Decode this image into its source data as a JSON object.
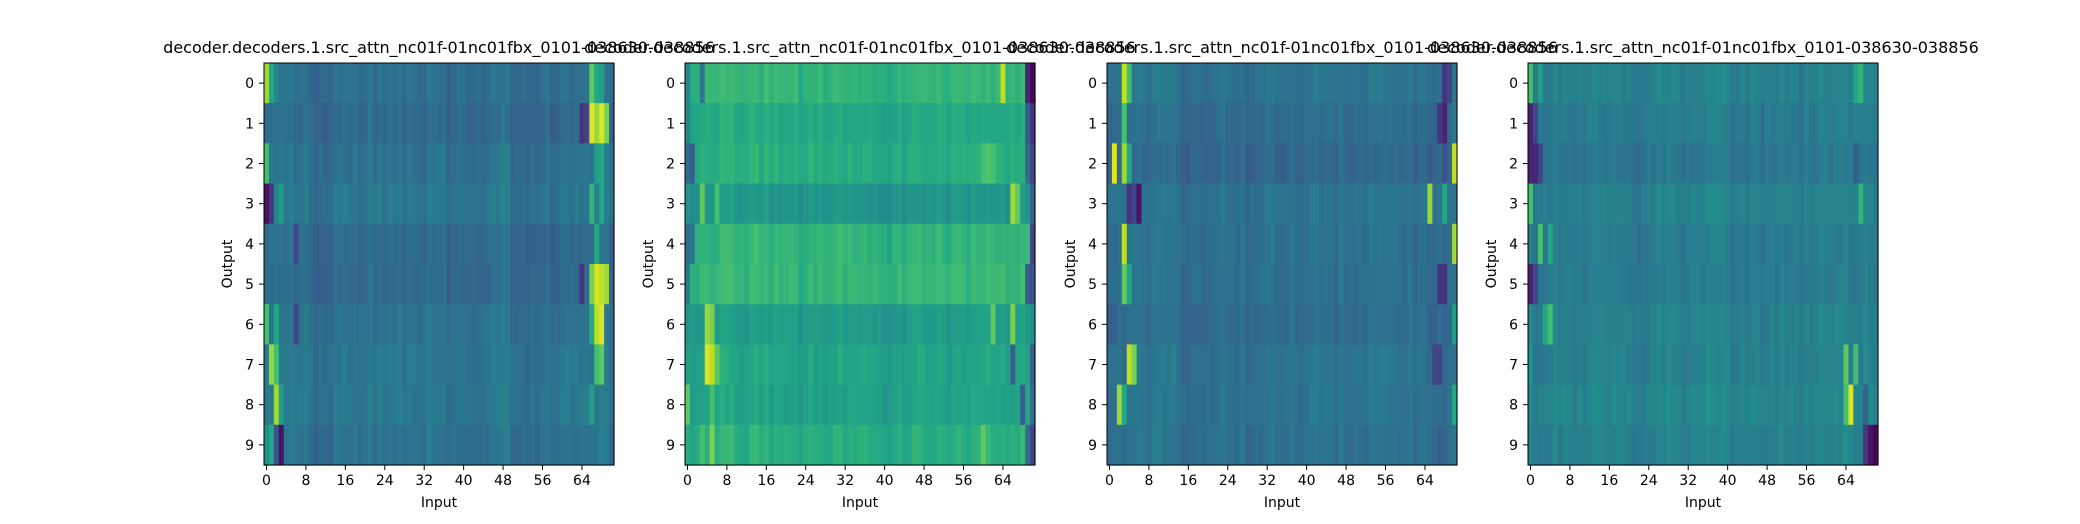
{
  "figure": {
    "background": "#ffffff",
    "colormap": "viridis"
  },
  "chart_data": [
    {
      "type": "heatmap",
      "title": "decoder.decoders.1.src_attn_nc01f-01nc01fbx_0101-038630-038856",
      "xlabel": "Input",
      "ylabel": "Output",
      "x_ticks": [
        "0",
        "8",
        "16",
        "24",
        "32",
        "40",
        "48",
        "56",
        "64"
      ],
      "y_ticks": [
        "0",
        "1",
        "2",
        "3",
        "4",
        "5",
        "6",
        "7",
        "8",
        "9"
      ],
      "rows": 10,
      "cols": 71,
      "base": 0.35,
      "row_offsets": [
        0.02,
        0.0,
        0.03,
        0.05,
        0.0,
        0.0,
        0.03,
        0.05,
        0.05,
        0.03
      ],
      "features": [
        {
          "row": 0,
          "col": 0,
          "value": 0.85
        },
        {
          "row": 0,
          "col": 1,
          "value": 0.6
        },
        {
          "row": 0,
          "col": 2,
          "value": 0.45
        },
        {
          "row": 0,
          "col": 66,
          "value": 0.75
        },
        {
          "row": 0,
          "col": 67,
          "value": 0.6
        },
        {
          "row": 0,
          "col": 68,
          "value": 0.55
        },
        {
          "row": 1,
          "col": 66,
          "value": 0.95
        },
        {
          "row": 1,
          "col": 67,
          "value": 0.85
        },
        {
          "row": 1,
          "col": 68,
          "value": 0.95
        },
        {
          "row": 1,
          "col": 69,
          "value": 0.8
        },
        {
          "row": 1,
          "col": 64,
          "value": 0.15
        },
        {
          "row": 1,
          "col": 65,
          "value": 0.2
        },
        {
          "row": 2,
          "col": 0,
          "value": 0.7
        },
        {
          "row": 2,
          "col": 67,
          "value": 0.55
        },
        {
          "row": 2,
          "col": 68,
          "value": 0.6
        },
        {
          "row": 3,
          "col": 0,
          "value": 0.05
        },
        {
          "row": 3,
          "col": 1,
          "value": 0.15
        },
        {
          "row": 3,
          "col": 3,
          "value": 0.55
        },
        {
          "row": 3,
          "col": 66,
          "value": 0.65
        },
        {
          "row": 3,
          "col": 68,
          "value": 0.6
        },
        {
          "row": 4,
          "col": 6,
          "value": 0.2
        },
        {
          "row": 4,
          "col": 67,
          "value": 0.6
        },
        {
          "row": 5,
          "col": 66,
          "value": 0.8
        },
        {
          "row": 5,
          "col": 67,
          "value": 0.95
        },
        {
          "row": 5,
          "col": 68,
          "value": 0.9
        },
        {
          "row": 5,
          "col": 69,
          "value": 0.85
        },
        {
          "row": 5,
          "col": 64,
          "value": 0.15
        },
        {
          "row": 6,
          "col": 0,
          "value": 0.7
        },
        {
          "row": 6,
          "col": 2,
          "value": 0.6
        },
        {
          "row": 6,
          "col": 6,
          "value": 0.2
        },
        {
          "row": 6,
          "col": 67,
          "value": 0.9
        },
        {
          "row": 6,
          "col": 68,
          "value": 0.95
        },
        {
          "row": 6,
          "col": 66,
          "value": 0.6
        },
        {
          "row": 7,
          "col": 1,
          "value": 0.85
        },
        {
          "row": 7,
          "col": 2,
          "value": 0.7
        },
        {
          "row": 7,
          "col": 67,
          "value": 0.7
        },
        {
          "row": 7,
          "col": 68,
          "value": 0.75
        },
        {
          "row": 8,
          "col": 2,
          "value": 0.85
        },
        {
          "row": 8,
          "col": 3,
          "value": 0.55
        },
        {
          "row": 8,
          "col": 66,
          "value": 0.55
        },
        {
          "row": 9,
          "col": 3,
          "value": 0.05
        },
        {
          "row": 9,
          "col": 2,
          "value": 0.25
        },
        {
          "row": 9,
          "col": 1,
          "value": 0.6
        },
        {
          "row": 9,
          "col": 0,
          "value": 0.5
        }
      ]
    },
    {
      "type": "heatmap",
      "title": "decoder.decoders.1.src_attn_nc01f-01nc01fbx_0101-038630-038856",
      "xlabel": "Input",
      "ylabel": "Output",
      "x_ticks": [
        "0",
        "8",
        "16",
        "24",
        "32",
        "40",
        "48",
        "56",
        "64"
      ],
      "y_ticks": [
        "0",
        "1",
        "2",
        "3",
        "4",
        "5",
        "6",
        "7",
        "8",
        "9"
      ],
      "rows": 10,
      "cols": 71,
      "base": 0.6,
      "row_offsets": [
        0.05,
        0.0,
        0.02,
        -0.08,
        0.05,
        0.06,
        -0.05,
        -0.02,
        -0.03,
        0.02
      ],
      "features": [
        {
          "row": 0,
          "col": 70,
          "value": 0.02
        },
        {
          "row": 0,
          "col": 69,
          "value": 0.1
        },
        {
          "row": 0,
          "col": 64,
          "value": 0.9
        },
        {
          "row": 0,
          "col": 0,
          "value": 0.45
        },
        {
          "row": 0,
          "col": 3,
          "value": 0.4
        },
        {
          "row": 1,
          "col": 70,
          "value": 0.15
        },
        {
          "row": 1,
          "col": 69,
          "value": 0.3
        },
        {
          "row": 1,
          "col": 0,
          "value": 0.45
        },
        {
          "row": 2,
          "col": 70,
          "value": 0.2
        },
        {
          "row": 2,
          "col": 69,
          "value": 0.35
        },
        {
          "row": 2,
          "col": 0,
          "value": 0.35
        },
        {
          "row": 2,
          "col": 1,
          "value": 0.3
        },
        {
          "row": 2,
          "col": 60,
          "value": 0.7
        },
        {
          "row": 2,
          "col": 61,
          "value": 0.72
        },
        {
          "row": 2,
          "col": 62,
          "value": 0.7
        },
        {
          "row": 3,
          "col": 66,
          "value": 0.85
        },
        {
          "row": 3,
          "col": 67,
          "value": 0.75
        },
        {
          "row": 3,
          "col": 3,
          "value": 0.75
        },
        {
          "row": 3,
          "col": 6,
          "value": 0.7
        },
        {
          "row": 3,
          "col": 70,
          "value": 0.3
        },
        {
          "row": 4,
          "col": 70,
          "value": 0.2
        },
        {
          "row": 4,
          "col": 0,
          "value": 0.35
        },
        {
          "row": 4,
          "col": 1,
          "value": 0.4
        },
        {
          "row": 5,
          "col": 70,
          "value": 0.25
        },
        {
          "row": 5,
          "col": 69,
          "value": 0.3
        },
        {
          "row": 5,
          "col": 0,
          "value": 0.4
        },
        {
          "row": 6,
          "col": 4,
          "value": 0.85
        },
        {
          "row": 6,
          "col": 5,
          "value": 0.8
        },
        {
          "row": 6,
          "col": 62,
          "value": 0.75
        },
        {
          "row": 6,
          "col": 66,
          "value": 0.8
        },
        {
          "row": 6,
          "col": 70,
          "value": 0.5
        },
        {
          "row": 7,
          "col": 4,
          "value": 0.95
        },
        {
          "row": 7,
          "col": 5,
          "value": 0.9
        },
        {
          "row": 7,
          "col": 6,
          "value": 0.75
        },
        {
          "row": 7,
          "col": 66,
          "value": 0.3
        },
        {
          "row": 7,
          "col": 70,
          "value": 0.3
        },
        {
          "row": 8,
          "col": 0,
          "value": 0.75
        },
        {
          "row": 8,
          "col": 5,
          "value": 0.7
        },
        {
          "row": 8,
          "col": 68,
          "value": 0.3
        },
        {
          "row": 8,
          "col": 70,
          "value": 0.35
        },
        {
          "row": 9,
          "col": 5,
          "value": 0.8
        },
        {
          "row": 9,
          "col": 3,
          "value": 0.7
        },
        {
          "row": 9,
          "col": 70,
          "value": 0.2
        },
        {
          "row": 9,
          "col": 69,
          "value": 0.35
        },
        {
          "row": 9,
          "col": 60,
          "value": 0.75
        }
      ]
    },
    {
      "type": "heatmap",
      "title": "decoder.decoders.1.src_attn_nc01f-01nc01fbx_0101-038630-038856",
      "xlabel": "Input",
      "ylabel": "Output",
      "x_ticks": [
        "0",
        "8",
        "16",
        "24",
        "32",
        "40",
        "48",
        "56",
        "64"
      ],
      "y_ticks": [
        "0",
        "1",
        "2",
        "3",
        "4",
        "5",
        "6",
        "7",
        "8",
        "9"
      ],
      "rows": 10,
      "cols": 71,
      "base": 0.35,
      "row_offsets": [
        0.03,
        0.0,
        -0.02,
        0.03,
        0.02,
        0.02,
        0.0,
        0.03,
        0.03,
        0.02
      ],
      "features": [
        {
          "row": 0,
          "col": 3,
          "value": 0.9
        },
        {
          "row": 0,
          "col": 4,
          "value": 0.7
        },
        {
          "row": 0,
          "col": 68,
          "value": 0.15
        },
        {
          "row": 0,
          "col": 69,
          "value": 0.2
        },
        {
          "row": 1,
          "col": 3,
          "value": 0.7
        },
        {
          "row": 1,
          "col": 67,
          "value": 0.15
        },
        {
          "row": 1,
          "col": 68,
          "value": 0.1
        },
        {
          "row": 1,
          "col": 70,
          "value": 0.4
        },
        {
          "row": 2,
          "col": 1,
          "value": 0.95
        },
        {
          "row": 2,
          "col": 3,
          "value": 0.85
        },
        {
          "row": 2,
          "col": 4,
          "value": 0.6
        },
        {
          "row": 2,
          "col": 68,
          "value": 0.25
        },
        {
          "row": 2,
          "col": 70,
          "value": 0.9
        },
        {
          "row": 3,
          "col": 4,
          "value": 0.15
        },
        {
          "row": 3,
          "col": 5,
          "value": 0.2
        },
        {
          "row": 3,
          "col": 6,
          "value": 0.05
        },
        {
          "row": 3,
          "col": 65,
          "value": 0.85
        },
        {
          "row": 3,
          "col": 68,
          "value": 0.6
        },
        {
          "row": 4,
          "col": 3,
          "value": 0.9
        },
        {
          "row": 4,
          "col": 70,
          "value": 0.85
        },
        {
          "row": 5,
          "col": 3,
          "value": 0.75
        },
        {
          "row": 5,
          "col": 4,
          "value": 0.6
        },
        {
          "row": 5,
          "col": 67,
          "value": 0.15
        },
        {
          "row": 5,
          "col": 68,
          "value": 0.15
        },
        {
          "row": 6,
          "col": 0,
          "value": 0.3
        },
        {
          "row": 6,
          "col": 70,
          "value": 0.55
        },
        {
          "row": 7,
          "col": 4,
          "value": 0.9
        },
        {
          "row": 7,
          "col": 5,
          "value": 0.8
        },
        {
          "row": 7,
          "col": 66,
          "value": 0.2
        },
        {
          "row": 7,
          "col": 67,
          "value": 0.2
        },
        {
          "row": 8,
          "col": 2,
          "value": 0.85
        },
        {
          "row": 8,
          "col": 3,
          "value": 0.6
        },
        {
          "row": 8,
          "col": 70,
          "value": 0.6
        },
        {
          "row": 9,
          "col": 67,
          "value": 0.3
        },
        {
          "row": 9,
          "col": 70,
          "value": 0.4
        }
      ]
    },
    {
      "type": "heatmap",
      "title": "decoder.decoders.1.src_attn_nc01f-01nc01fbx_0101-038630-038856",
      "xlabel": "Input",
      "ylabel": "Output",
      "x_ticks": [
        "0",
        "8",
        "16",
        "24",
        "32",
        "40",
        "48",
        "56",
        "64"
      ],
      "y_ticks": [
        "0",
        "1",
        "2",
        "3",
        "4",
        "5",
        "6",
        "7",
        "8",
        "9"
      ],
      "rows": 10,
      "cols": 71,
      "base": 0.42,
      "row_offsets": [
        0.02,
        0.0,
        -0.02,
        0.02,
        0.0,
        0.0,
        0.02,
        0.02,
        0.04,
        0.02
      ],
      "features": [
        {
          "row": 0,
          "col": 0,
          "value": 0.7
        },
        {
          "row": 0,
          "col": 2,
          "value": 0.55
        },
        {
          "row": 0,
          "col": 66,
          "value": 0.6
        },
        {
          "row": 0,
          "col": 67,
          "value": 0.65
        },
        {
          "row": 1,
          "col": 0,
          "value": 0.1
        },
        {
          "row": 1,
          "col": 1,
          "value": 0.2
        },
        {
          "row": 2,
          "col": 0,
          "value": 0.1
        },
        {
          "row": 2,
          "col": 1,
          "value": 0.1
        },
        {
          "row": 2,
          "col": 2,
          "value": 0.2
        },
        {
          "row": 2,
          "col": 66,
          "value": 0.3
        },
        {
          "row": 3,
          "col": 0,
          "value": 0.7
        },
        {
          "row": 3,
          "col": 67,
          "value": 0.65
        },
        {
          "row": 4,
          "col": 2,
          "value": 0.7
        },
        {
          "row": 4,
          "col": 4,
          "value": 0.6
        },
        {
          "row": 5,
          "col": 0,
          "value": 0.1
        },
        {
          "row": 5,
          "col": 1,
          "value": 0.2
        },
        {
          "row": 6,
          "col": 4,
          "value": 0.7
        },
        {
          "row": 6,
          "col": 3,
          "value": 0.6
        },
        {
          "row": 7,
          "col": 0,
          "value": 0.5
        },
        {
          "row": 7,
          "col": 64,
          "value": 0.75
        },
        {
          "row": 7,
          "col": 66,
          "value": 0.7
        },
        {
          "row": 8,
          "col": 65,
          "value": 0.95
        },
        {
          "row": 8,
          "col": 64,
          "value": 0.7
        },
        {
          "row": 8,
          "col": 68,
          "value": 0.3
        },
        {
          "row": 9,
          "col": 69,
          "value": 0.05
        },
        {
          "row": 9,
          "col": 70,
          "value": 0.02
        },
        {
          "row": 9,
          "col": 68,
          "value": 0.15
        },
        {
          "row": 9,
          "col": 64,
          "value": 0.5
        }
      ]
    }
  ]
}
